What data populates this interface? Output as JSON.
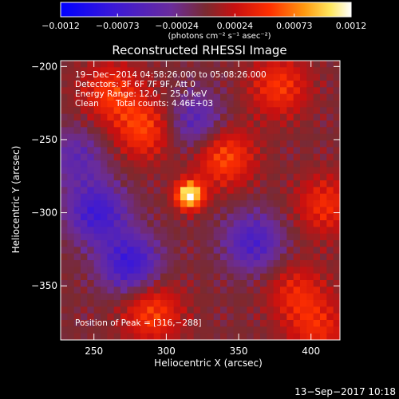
{
  "chart_data": {
    "type": "heatmap",
    "title": "Reconstructed RHESSI Image",
    "xlabel": "Heliocentric X (arcsec)",
    "ylabel": "Heliocentric Y (arcsec)",
    "xlim": [
      227,
      420
    ],
    "ylim": [
      -387,
      -196
    ],
    "x_ticks": [
      250,
      300,
      350,
      400
    ],
    "y_ticks": [
      -200,
      -250,
      -300,
      -350
    ],
    "x_tick_labels": [
      "250",
      "300",
      "350",
      "400"
    ],
    "y_tick_labels": [
      "−200",
      "−250",
      "−300",
      "−350"
    ],
    "colorbar": {
      "min": -0.0012,
      "max": 0.0012,
      "tick_labels": [
        "−0.0012",
        "−0.00073",
        "−0.00024",
        "0.00024",
        "0.00073",
        "0.0012"
      ],
      "tick_values": [
        -0.0012,
        -0.00073,
        -0.00024,
        0.00024,
        0.00073,
        0.0012
      ],
      "unit_label": "(photons cm⁻² s⁻¹ asec⁻²)",
      "colormap": "blue-purple-red-yellow-white"
    },
    "peak": {
      "x": 316,
      "y": -288
    },
    "sources": [
      {
        "x": 316,
        "y": -288,
        "value": 0.0012
      },
      {
        "x": 340,
        "y": -262,
        "value": 0.0006
      },
      {
        "x": 285,
        "y": -243,
        "value": 0.00055
      },
      {
        "x": 262,
        "y": -218,
        "value": 0.0005
      },
      {
        "x": 378,
        "y": -214,
        "value": 0.0005
      },
      {
        "x": 410,
        "y": -295,
        "value": 0.00045
      },
      {
        "x": 390,
        "y": -355,
        "value": 0.0004
      },
      {
        "x": 290,
        "y": -368,
        "value": 0.00055
      },
      {
        "x": 405,
        "y": -380,
        "value": 0.0004
      },
      {
        "x": 252,
        "y": -300,
        "value": -0.0007
      },
      {
        "x": 275,
        "y": -335,
        "value": -0.00075
      },
      {
        "x": 360,
        "y": -320,
        "value": -0.0006
      },
      {
        "x": 320,
        "y": -238,
        "value": -0.0005
      },
      {
        "x": 238,
        "y": -262,
        "value": -0.0004
      }
    ],
    "annotations": {
      "time": "19−Dec−2014 04:58:26.000 to 05:08:26.000",
      "detectors": "Detectors: 3F 6F 7F 9F, Att 0",
      "energy": "Energy Range: 12.0 − 25.0 keV",
      "clean": "Clean",
      "total_counts": "Total counts: 4.46E+03",
      "peak": "Position of Peak = [316,−288]"
    }
  },
  "footer": {
    "timestamp": "13−Sep−2017 10:18"
  }
}
